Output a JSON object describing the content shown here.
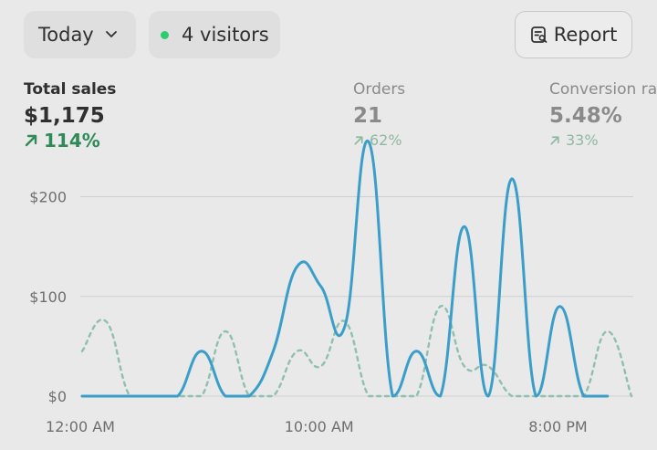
{
  "toolbar": {
    "period_label": "Today",
    "visitors_label": "4 visitors",
    "report_label": "Report",
    "live_color": "#2ecc71"
  },
  "metrics": {
    "sales": {
      "label": "Total sales",
      "value": "$1,175",
      "change": "114%"
    },
    "orders": {
      "label": "Orders",
      "value": "21",
      "change": "62%"
    },
    "conversion": {
      "label": "Conversion rate",
      "value": "5.48%",
      "change": "33%"
    }
  },
  "chart_data": {
    "type": "line",
    "y_ticks": [
      {
        "label": "$200",
        "value": 200
      },
      {
        "label": "$100",
        "value": 100
      },
      {
        "label": "$0",
        "value": 0
      }
    ],
    "x_tick_labels": [
      {
        "label": "12:00 AM",
        "hour": 0
      },
      {
        "label": "10:00 AM",
        "hour": 10
      },
      {
        "label": "8:00 PM",
        "hour": 20
      }
    ],
    "xlim": [
      0,
      23
    ],
    "ylim": [
      0,
      260
    ],
    "grid": true,
    "series": [
      {
        "style": "solid",
        "color": "#3a9ec9",
        "points": [
          [
            0,
            0
          ],
          [
            1,
            0
          ],
          [
            2,
            0
          ],
          [
            3,
            0
          ],
          [
            4,
            0
          ],
          [
            5,
            45
          ],
          [
            6,
            0
          ],
          [
            7,
            0
          ],
          [
            8,
            45
          ],
          [
            9,
            130
          ],
          [
            10,
            110
          ],
          [
            11,
            70
          ],
          [
            12,
            255
          ],
          [
            13,
            0
          ],
          [
            14,
            45
          ],
          [
            15,
            0
          ],
          [
            16,
            170
          ],
          [
            17,
            0
          ],
          [
            18,
            218
          ],
          [
            19,
            0
          ],
          [
            20,
            90
          ],
          [
            21,
            0
          ],
          [
            22,
            0
          ]
        ]
      },
      {
        "style": "dashed",
        "color": "#8fbfb0",
        "points": [
          [
            0,
            45
          ],
          [
            1,
            75
          ],
          [
            2,
            0
          ],
          [
            3,
            0
          ],
          [
            4,
            0
          ],
          [
            5,
            0
          ],
          [
            6,
            65
          ],
          [
            7,
            0
          ],
          [
            8,
            0
          ],
          [
            9,
            45
          ],
          [
            10,
            30
          ],
          [
            11,
            75
          ],
          [
            12,
            0
          ],
          [
            13,
            0
          ],
          [
            14,
            0
          ],
          [
            15,
            90
          ],
          [
            16,
            30
          ],
          [
            17,
            30
          ],
          [
            18,
            0
          ],
          [
            19,
            0
          ],
          [
            20,
            0
          ],
          [
            21,
            0
          ],
          [
            22,
            65
          ],
          [
            23,
            0
          ]
        ]
      }
    ]
  }
}
